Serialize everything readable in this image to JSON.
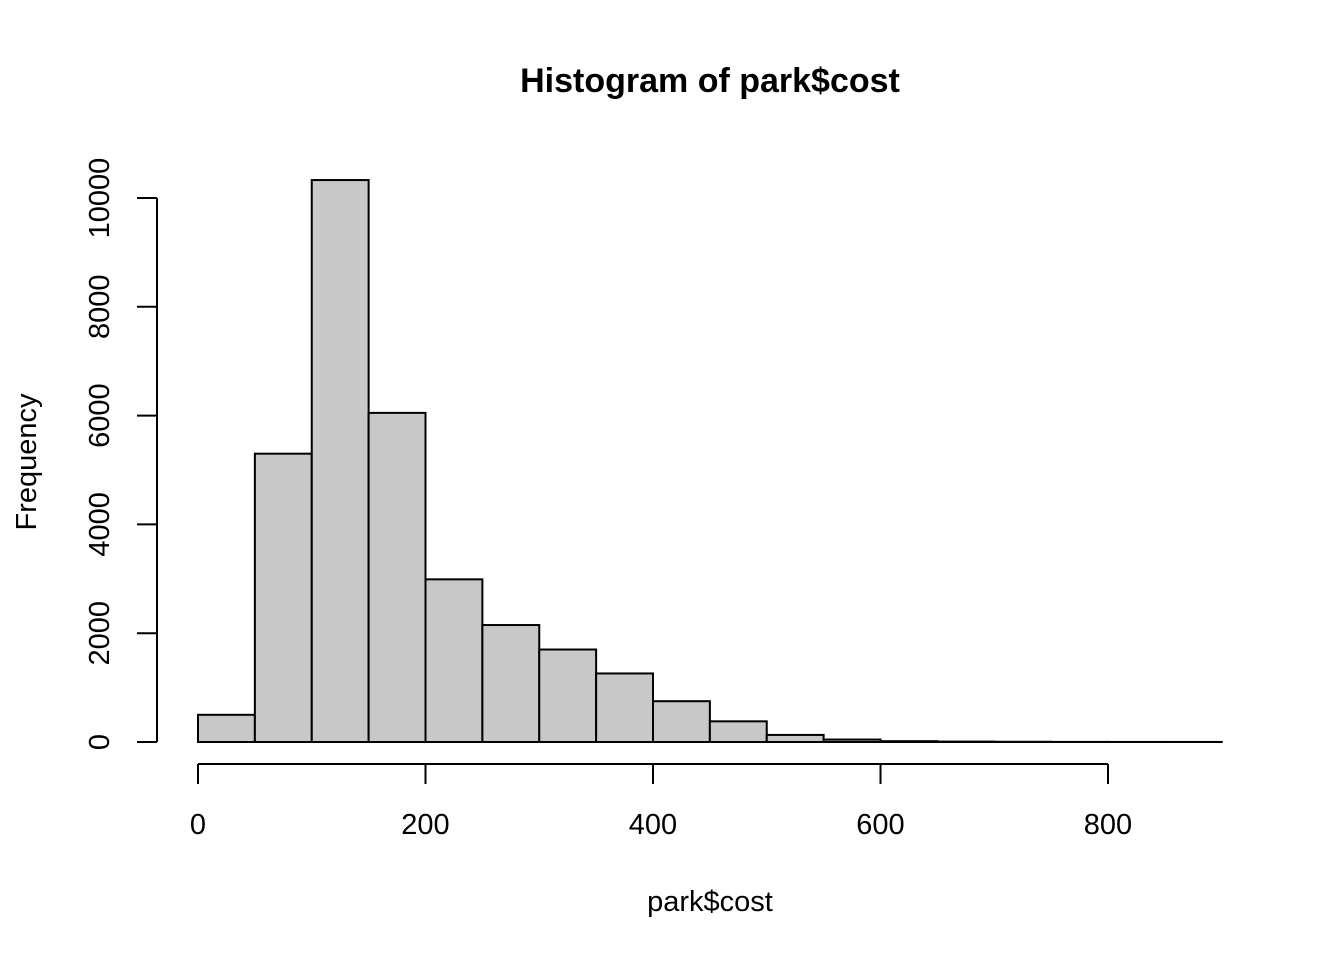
{
  "chart_data": {
    "type": "bar",
    "title": "Histogram of park$cost",
    "xlabel": "park$cost",
    "ylabel": "Frequency",
    "bin_width": 50,
    "bins": [
      {
        "start": 0,
        "end": 50,
        "count": 500
      },
      {
        "start": 50,
        "end": 100,
        "count": 5300
      },
      {
        "start": 100,
        "end": 150,
        "count": 10330
      },
      {
        "start": 150,
        "end": 200,
        "count": 6050
      },
      {
        "start": 200,
        "end": 250,
        "count": 2990
      },
      {
        "start": 250,
        "end": 300,
        "count": 2150
      },
      {
        "start": 300,
        "end": 350,
        "count": 1700
      },
      {
        "start": 350,
        "end": 400,
        "count": 1260
      },
      {
        "start": 400,
        "end": 450,
        "count": 750
      },
      {
        "start": 450,
        "end": 500,
        "count": 380
      },
      {
        "start": 500,
        "end": 550,
        "count": 130
      },
      {
        "start": 550,
        "end": 600,
        "count": 45
      },
      {
        "start": 600,
        "end": 650,
        "count": 15
      },
      {
        "start": 650,
        "end": 700,
        "count": 8
      },
      {
        "start": 700,
        "end": 750,
        "count": 4
      },
      {
        "start": 750,
        "end": 800,
        "count": 2
      },
      {
        "start": 800,
        "end": 850,
        "count": 1
      },
      {
        "start": 850,
        "end": 900,
        "count": 1
      }
    ],
    "xlim": [
      0,
      900
    ],
    "ylim": [
      0,
      10330
    ],
    "x_ticks": [
      0,
      200,
      400,
      600,
      800
    ],
    "x_tick_labels": [
      "0",
      "200",
      "400",
      "600",
      "800"
    ],
    "y_ticks": [
      0,
      2000,
      4000,
      6000,
      8000,
      10000
    ],
    "y_tick_labels": [
      "0",
      "2000",
      "4000",
      "6000",
      "8000",
      "10000"
    ],
    "grid": false,
    "legend": "none"
  }
}
